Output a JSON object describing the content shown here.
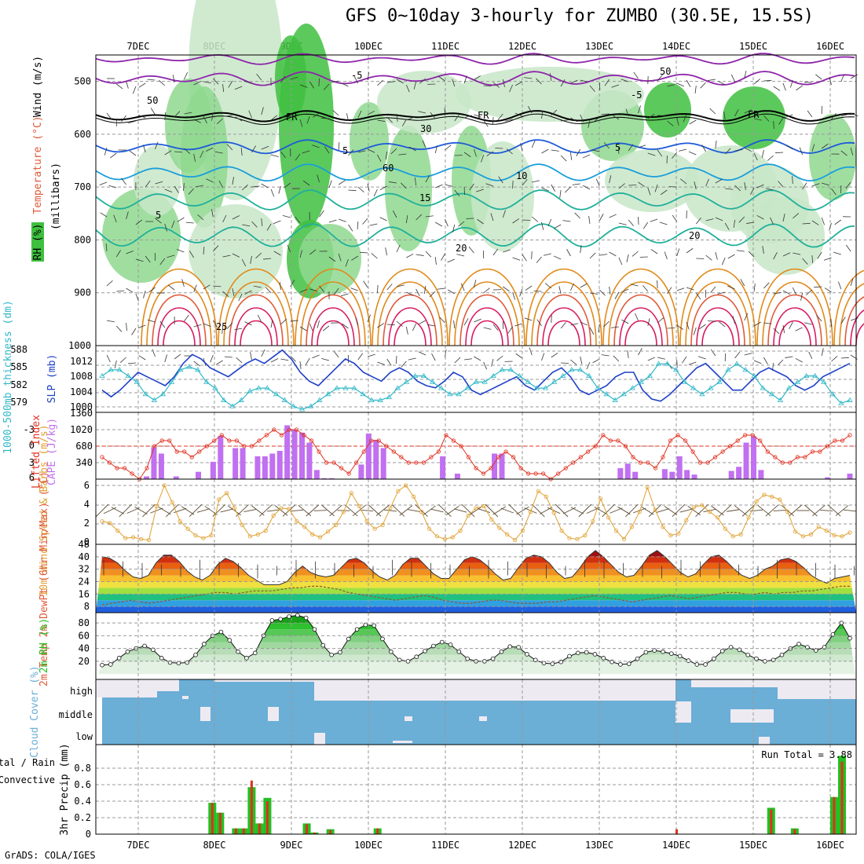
{
  "title": "GFS 0~10day 3-hourly for ZUMBO (30.5E, 15.5S)",
  "credit": "GrADS: COLA/IGES",
  "colors": {
    "rh_dark": "#3fbf3f",
    "rh_mid": "#8fd88f",
    "rh_light": "#c8e6c8",
    "rh_pale": "#e8f4e8",
    "temp_cold": "#8e24aa",
    "temp_cool": "#1e5ad8",
    "temp_mid": "#1a9edb",
    "temp_warm": "#20b09a",
    "temp_hot": "#e08a1a",
    "temp_vhot": "#d81b60",
    "freezing": "#000000",
    "slp": "#1e40c8",
    "thickness": "#30b8c8",
    "cape": "#c070f0",
    "lifted": "#e03020",
    "wind": "#e0a030",
    "rh2m": "#22c022",
    "cloud": "#6baed6",
    "precip_total": "#22c022",
    "precip_conv": "#e03020"
  },
  "chart_data": [
    {
      "panel": "upper-air",
      "type": "heatmap",
      "title": "GFS 0~10day 3-hourly for ZUMBO (30.5E, 15.5S)",
      "ylabel_parts": [
        "RH (%)",
        "Temperature (°C)",
        "Wind (m/s)",
        "(millibars)"
      ],
      "x_labels": [
        "7DEC",
        "8DEC",
        "9DEC",
        "10DEC",
        "11DEC",
        "12DEC",
        "13DEC",
        "14DEC",
        "15DEC",
        "16DEC"
      ],
      "y_ticks": [
        500,
        600,
        700,
        800,
        900,
        1000
      ],
      "ylim": [
        1000,
        450
      ],
      "contour_labels": [
        "-5",
        "FR",
        "5",
        "10",
        "15",
        "20",
        "25",
        "50",
        "30",
        "60"
      ]
    },
    {
      "panel": "slp-thickness",
      "type": "line",
      "ylabel_left": "1000-500mb thickness (dm)",
      "ylabel_right": "SLP (mb)",
      "y_ticks_left": [
        579,
        582,
        585,
        588
      ],
      "y_ticks_right": [
        1000,
        1004,
        1008,
        1012
      ],
      "series": [
        {
          "name": "SLP (mb)",
          "values": [
            1004,
            1002.5,
            1004,
            1006,
            1008,
            1007,
            1006,
            1005,
            1007,
            1010,
            1012,
            1011,
            1009,
            1008,
            1007,
            1008.5,
            1010,
            1011,
            1010,
            1011.5,
            1013,
            1011,
            1008,
            1006,
            1005,
            1007,
            1009,
            1011,
            1010,
            1008,
            1007,
            1006,
            1008,
            1009,
            1008,
            1006,
            1005,
            1004.5,
            1006,
            1008,
            1007,
            1004,
            1003,
            1004,
            1005,
            1006,
            1007,
            1005,
            1004,
            1006,
            1008,
            1009,
            1007,
            1004,
            1003,
            1004,
            1005,
            1007,
            1008,
            1008,
            1004,
            1002,
            1001.5,
            1003,
            1005,
            1007,
            1009,
            1010,
            1008,
            1006,
            1004,
            1004,
            1006,
            1008,
            1009,
            1008,
            1007,
            1005,
            1004,
            1005,
            1007,
            1008,
            1009,
            1010
          ]
        },
        {
          "name": "1000-500mb thickness (dm)",
          "values": [
            584,
            585,
            585,
            584,
            583,
            581,
            580,
            581,
            583,
            585,
            585.5,
            585,
            583,
            582,
            580,
            579,
            580,
            581.5,
            582,
            582,
            581,
            580,
            579,
            578.5,
            579,
            580,
            581,
            582,
            582,
            582,
            581,
            580,
            580,
            580.5,
            582,
            583,
            584,
            584,
            583,
            582,
            581,
            581,
            582,
            583,
            583,
            584,
            585,
            585,
            584,
            583,
            582,
            582,
            583,
            584,
            585,
            585,
            584,
            582,
            581,
            580,
            581,
            582,
            583,
            584,
            586,
            586,
            585,
            583,
            582,
            581,
            582,
            583,
            585,
            586,
            585,
            584,
            582,
            581,
            580,
            582,
            583,
            584,
            584,
            583,
            581,
            579.5,
            580
          ]
        }
      ]
    },
    {
      "panel": "cape-lifted-index",
      "type": "bar",
      "ylabel_left": "Lifted Index",
      "ylabel_right": "CAPE (J/kg)",
      "y_ticks_li": [
        -3,
        0,
        3,
        6
      ],
      "y_ticks_cape": [
        340,
        680,
        1020,
        1360
      ],
      "series": [
        {
          "name": "CAPE (J/kg)",
          "values": [
            0,
            0,
            0,
            0,
            0,
            0,
            60,
            700,
            560,
            0,
            60,
            0,
            0,
            160,
            0,
            380,
            950,
            0,
            680,
            680,
            0,
            500,
            500,
            560,
            620,
            1180,
            1080,
            1020,
            800,
            200,
            20,
            20,
            0,
            0,
            0,
            320,
            1000,
            860,
            680,
            0,
            0,
            0,
            0,
            0,
            0,
            0,
            500,
            0,
            120,
            0,
            0,
            0,
            0,
            560,
            560,
            0,
            0,
            0,
            0,
            0,
            0,
            0,
            0,
            0,
            0,
            0,
            0,
            0,
            0,
            0,
            240,
            340,
            160,
            0,
            0,
            0,
            220,
            160,
            500,
            200,
            100,
            0,
            0,
            0,
            0,
            180,
            270,
            800,
            940,
            200,
            0,
            0,
            0,
            0,
            0,
            0,
            0,
            0,
            40,
            0,
            0,
            120
          ]
        },
        {
          "name": "Lifted Index",
          "values": [
            2,
            3,
            4,
            4,
            5,
            6,
            4,
            0,
            -1,
            -1,
            1,
            1,
            2,
            1,
            0,
            -1,
            -2,
            -1,
            -1,
            0,
            0,
            -1,
            -2,
            -3,
            -2,
            -3,
            -3,
            -2,
            -1,
            1,
            3,
            3,
            4,
            5,
            3,
            1,
            -1,
            -1,
            0,
            1,
            2,
            3,
            3,
            3,
            2,
            1,
            -2,
            -1,
            0,
            2,
            4,
            5,
            4,
            2,
            1,
            2,
            4,
            5,
            5,
            5,
            6,
            5,
            4,
            3,
            2,
            1,
            0,
            -2,
            -1,
            -1,
            0,
            2,
            3,
            3,
            4,
            2,
            -1,
            -2,
            -1,
            1,
            3,
            3,
            2,
            1,
            0,
            -1,
            -2,
            -2,
            -1,
            1,
            2,
            3,
            3,
            2,
            2,
            1,
            1,
            0,
            -1,
            -1,
            -2
          ]
        }
      ]
    },
    {
      "panel": "wind10m",
      "type": "line",
      "ylabel": "10m Wind Speed & Barbs (m/s)",
      "y_ticks": [
        0,
        2,
        4,
        6
      ],
      "series": [
        {
          "name": "10m Wind Speed",
          "values": [
            2.2,
            2,
            1.2,
            0.4,
            0.5,
            0.3,
            0.2,
            3.8,
            6,
            4.2,
            2.2,
            1.4,
            0.7,
            0.4,
            0.7,
            4.5,
            5.2,
            3.6,
            1.8,
            0.6,
            0.8,
            1.2,
            2.8,
            3.6,
            3.5,
            2.2,
            1.6,
            0.8,
            0.5,
            1.1,
            1.8,
            3.2,
            5.2,
            3.8,
            2.2,
            1.4,
            1.8,
            3.6,
            5.4,
            6,
            4.8,
            3.2,
            1.4,
            0.6,
            0.3,
            0.5,
            1.2,
            2.8,
            3.6,
            3.8,
            2.4,
            1.5,
            0.8,
            0.2,
            1.2,
            3.2,
            5.4,
            4.8,
            3.1,
            1.2,
            0.4,
            0.3,
            0.7,
            2.2,
            4.6,
            2.6,
            1.2,
            0.3,
            1.6,
            3.2,
            5.8,
            3.4,
            1.6,
            0.7,
            0.9,
            2.3,
            3.7,
            3.9,
            3.2,
            2.6,
            1.4,
            0.6,
            0.8,
            2.6,
            4.3,
            5,
            4.8,
            4.5,
            3.2,
            1.1,
            0.6,
            0.8,
            1.6,
            1.2,
            0.7,
            0.6,
            1
          ]
        }
      ]
    },
    {
      "panel": "temperature2m",
      "type": "area",
      "ylabel": "2m Temp 2m DewPt (6hr Min/Max) (°C)",
      "y_ticks": [
        8,
        16,
        24,
        32,
        40,
        48
      ],
      "series": [
        {
          "name": "2m Temp",
          "values": [
            40,
            39,
            36,
            31,
            27,
            26,
            28,
            36,
            41,
            41,
            37,
            31,
            27,
            25,
            28,
            35,
            39,
            37,
            33,
            28,
            25,
            22,
            22,
            22,
            24,
            30,
            34,
            30,
            28,
            27,
            28,
            33,
            38,
            39,
            36,
            31,
            27,
            25,
            28,
            35,
            39,
            39,
            34,
            29,
            26,
            26,
            32,
            38,
            40,
            38,
            34,
            29,
            25,
            26,
            33,
            39,
            41,
            40,
            36,
            30,
            26,
            27,
            33,
            40,
            44,
            40,
            35,
            30,
            27,
            28,
            34,
            41,
            44,
            40,
            35,
            30,
            27,
            29,
            35,
            40,
            41,
            37,
            32,
            28,
            26,
            28,
            32,
            34,
            38,
            39,
            37,
            33,
            28,
            25,
            23,
            26,
            27,
            28
          ]
        },
        {
          "name": "2m DewPt",
          "values": [
            9,
            10,
            11,
            12,
            11,
            10,
            11,
            12,
            13,
            14,
            15,
            16,
            17,
            17,
            16,
            17,
            18,
            18,
            18,
            19,
            20,
            20,
            21,
            21,
            20,
            19,
            17,
            16,
            15,
            14,
            13,
            12,
            13,
            14,
            15,
            14,
            12,
            11,
            10,
            10,
            11,
            12,
            12,
            11,
            10,
            10,
            10,
            11,
            11,
            12,
            13,
            14,
            15,
            14,
            13,
            12,
            11,
            12,
            13,
            14,
            15,
            14,
            13,
            14,
            15,
            16,
            17,
            17,
            16,
            16,
            17,
            16,
            17,
            17,
            18,
            18,
            19,
            20,
            21,
            21
          ]
        }
      ]
    },
    {
      "panel": "rh2m",
      "type": "area",
      "ylabel": "2m RH (%)",
      "y_ticks": [
        20,
        40,
        60,
        80
      ],
      "series": [
        {
          "name": "2m RH",
          "values": [
            14,
            15,
            25,
            35,
            40,
            44,
            38,
            25,
            18,
            17,
            18,
            30,
            47,
            60,
            66,
            53,
            35,
            25,
            33,
            60,
            84,
            86,
            90,
            92,
            88,
            70,
            45,
            30,
            34,
            55,
            70,
            77,
            76,
            55,
            35,
            22,
            20,
            27,
            36,
            44,
            50,
            46,
            35,
            24,
            20,
            20,
            24,
            35,
            43,
            42,
            31,
            22,
            17,
            16,
            19,
            28,
            33,
            34,
            31,
            25,
            19,
            15,
            16,
            24,
            34,
            37,
            35,
            32,
            28,
            21,
            15,
            15,
            24,
            36,
            42,
            38,
            30,
            24,
            20,
            22,
            30,
            40,
            47,
            42,
            37,
            42,
            62,
            80,
            56
          ]
        }
      ]
    },
    {
      "panel": "cloud-cover",
      "type": "heatmap",
      "ylabel": "Cloud Cover (%)",
      "y_labels": [
        "high",
        "middle",
        "low"
      ]
    },
    {
      "panel": "precip",
      "type": "bar",
      "ylabel": "3hr Precip (mm)",
      "legend": [
        "Total / Rain",
        "Convective"
      ],
      "annotation": "Run Total = 3.88",
      "y_ticks": [
        0,
        0.2,
        0.4,
        0.6,
        0.8
      ],
      "x_labels": [
        "7DEC",
        "8DEC",
        "9DEC",
        "10DEC",
        "11DEC",
        "12DEC",
        "13DEC",
        "14DEC",
        "15DEC",
        "16DEC"
      ],
      "series": [
        {
          "name": "Total / Rain",
          "values": [
            0,
            0,
            0,
            0,
            0,
            0,
            0,
            0,
            0,
            0,
            0,
            0,
            0,
            0,
            0.38,
            0.26,
            0,
            0.07,
            0.07,
            0.57,
            0.13,
            0.44,
            0,
            0,
            0,
            0,
            0.13,
            0.02,
            0,
            0.06,
            0,
            0,
            0,
            0,
            0,
            0.07,
            0,
            0,
            0,
            0,
            0,
            0,
            0,
            0,
            0,
            0,
            0,
            0,
            0,
            0,
            0,
            0,
            0,
            0,
            0,
            0,
            0,
            0,
            0,
            0,
            0,
            0,
            0,
            0,
            0,
            0,
            0,
            0,
            0,
            0,
            0,
            0,
            0,
            0,
            0,
            0,
            0,
            0,
            0,
            0,
            0,
            0,
            0,
            0,
            0,
            0.32,
            0,
            0,
            0.07,
            0,
            0,
            0,
            0,
            0.45,
            0.95,
            0
          ]
        },
        {
          "name": "Convective",
          "values": [
            0,
            0,
            0,
            0,
            0,
            0,
            0,
            0,
            0,
            0,
            0,
            0,
            0,
            0,
            0.38,
            0.26,
            0,
            0.07,
            0.07,
            0.65,
            0.13,
            0.4,
            0,
            0,
            0,
            0,
            0.12,
            0.02,
            0,
            0.05,
            0,
            0,
            0,
            0,
            0,
            0.07,
            0,
            0,
            0,
            0,
            0,
            0,
            0,
            0,
            0,
            0,
            0,
            0,
            0,
            0,
            0,
            0,
            0,
            0,
            0,
            0,
            0,
            0,
            0,
            0,
            0,
            0,
            0,
            0,
            0,
            0,
            0,
            0,
            0,
            0,
            0,
            0,
            0,
            0.06,
            0,
            0,
            0,
            0,
            0,
            0,
            0,
            0,
            0,
            0,
            0,
            0.3,
            0,
            0,
            0.06,
            0,
            0,
            0,
            0,
            0.45,
            0.88,
            0
          ]
        }
      ]
    }
  ]
}
